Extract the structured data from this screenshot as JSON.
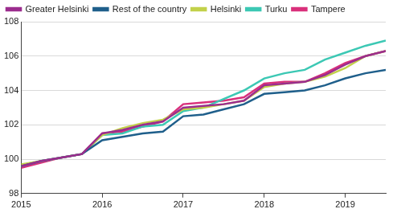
{
  "chart_data": {
    "type": "line",
    "categories": [
      "2015",
      null,
      null,
      null,
      "2016",
      null,
      null,
      null,
      "2017",
      null,
      null,
      null,
      "2018",
      null,
      null,
      null,
      "2019",
      null,
      null
    ],
    "series": [
      {
        "name": "Greater Helsinki",
        "color": "#9b2d8e",
        "values": [
          99.6,
          99.9,
          100.1,
          100.3,
          101.5,
          101.7,
          102.0,
          102.2,
          103.0,
          103.1,
          103.2,
          103.4,
          104.3,
          104.4,
          104.5,
          104.9,
          105.5,
          106.0,
          106.3
        ]
      },
      {
        "name": "Rest of the country",
        "color": "#1f5f8b",
        "values": [
          99.6,
          99.9,
          100.1,
          100.3,
          101.1,
          101.3,
          101.5,
          101.6,
          102.5,
          102.6,
          102.9,
          103.2,
          103.8,
          103.9,
          104.0,
          104.3,
          104.7,
          105.0,
          105.2
        ]
      },
      {
        "name": "Helsinki",
        "color": "#c2d14a",
        "values": [
          99.7,
          99.9,
          100.1,
          100.3,
          101.4,
          101.8,
          102.1,
          102.3,
          102.9,
          103.0,
          103.2,
          103.4,
          104.2,
          104.4,
          104.5,
          104.8,
          105.3,
          106.0,
          106.3
        ]
      },
      {
        "name": "Turku",
        "color": "#3cc8b4",
        "values": [
          99.6,
          99.9,
          100.1,
          100.3,
          101.4,
          101.5,
          101.9,
          102.0,
          102.8,
          103.0,
          103.5,
          104.0,
          104.7,
          105.0,
          105.2,
          105.8,
          106.2,
          106.6,
          106.9
        ]
      },
      {
        "name": "Tampere",
        "color": "#d9307b",
        "values": [
          99.5,
          99.8,
          100.1,
          100.3,
          101.5,
          101.6,
          101.9,
          102.2,
          103.2,
          103.3,
          103.4,
          103.6,
          104.4,
          104.5,
          104.5,
          105.0,
          105.6,
          106.0,
          106.3
        ]
      }
    ],
    "ylim": [
      98,
      108
    ],
    "yticks": [
      98,
      100,
      102,
      104,
      106,
      108
    ],
    "grid": true,
    "legend": "top"
  }
}
